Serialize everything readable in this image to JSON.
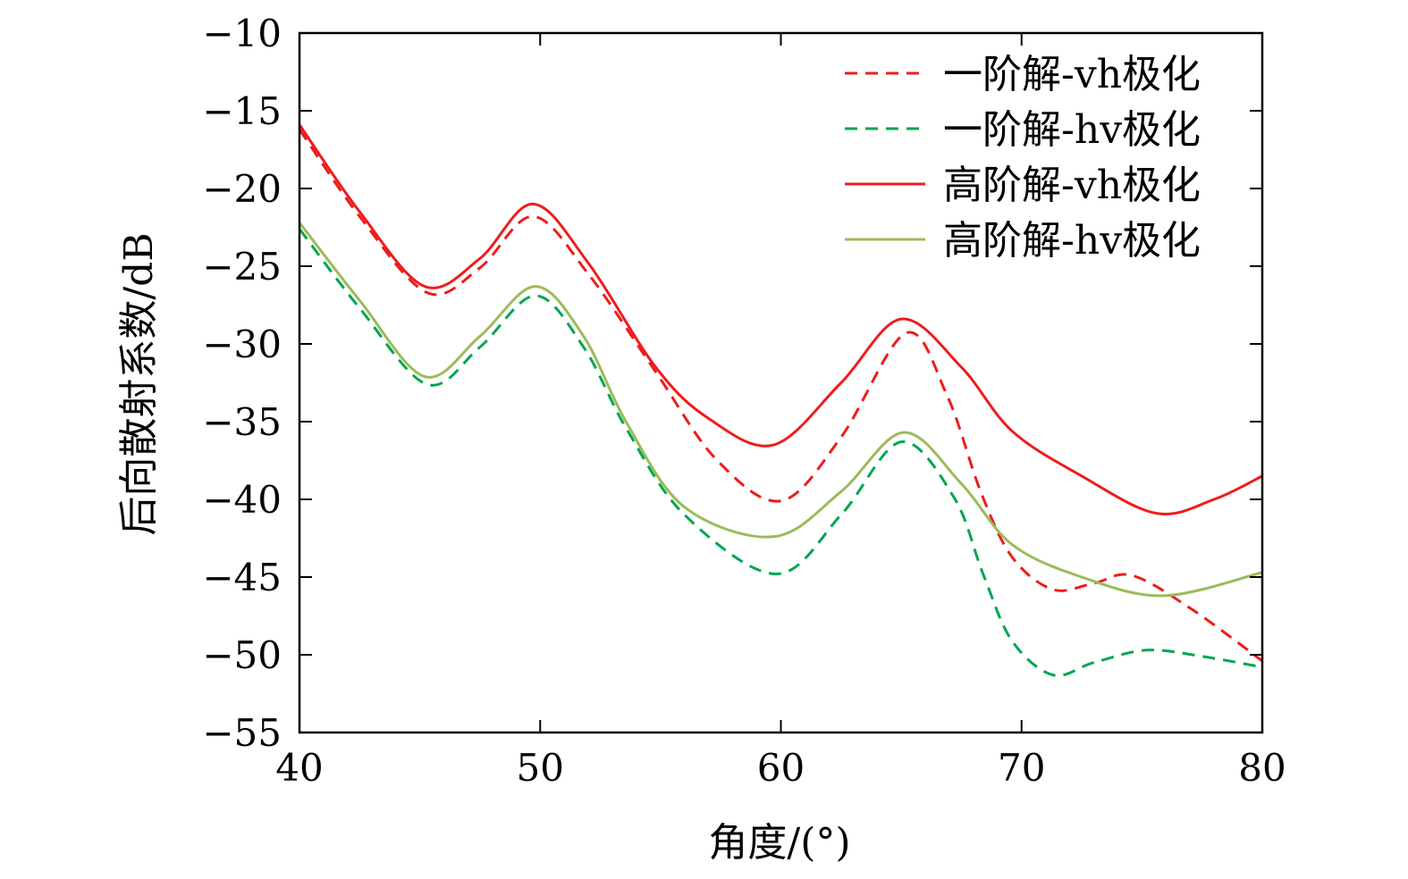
{
  "chart_data": {
    "type": "line",
    "title": "",
    "xlabel": "角度/(°)",
    "ylabel": "后向散射系数/dB",
    "xlim": [
      40,
      80
    ],
    "ylim": [
      -55,
      -10
    ],
    "xticks": [
      40,
      50,
      60,
      70,
      80
    ],
    "yticks": [
      -10,
      -15,
      -20,
      -25,
      -30,
      -35,
      -40,
      -45,
      -50,
      -55
    ],
    "xtick_labels": [
      "40",
      "50",
      "60",
      "70",
      "80"
    ],
    "ytick_labels": [
      "−10",
      "−15",
      "−20",
      "−25",
      "−30",
      "−35",
      "−40",
      "−45",
      "−50",
      "−55"
    ],
    "grid": false,
    "legend_position": "top-right",
    "series": [
      {
        "name": "一阶解-vh极化",
        "color": "#ee1c1c",
        "dash": true,
        "x": [
          40,
          42.5,
          45.3,
          47.5,
          49.7,
          52,
          54.8,
          57.3,
          60,
          62.5,
          65.2,
          66.9,
          68.3,
          69.6,
          71.3,
          73,
          74.6,
          77.1,
          80
        ],
        "y": [
          -16.2,
          -21.8,
          -26.7,
          -25.1,
          -21.8,
          -25.5,
          -31.8,
          -37.4,
          -40.1,
          -36,
          -29.3,
          -33.3,
          -39.5,
          -43.7,
          -45.8,
          -45.4,
          -44.9,
          -47.1,
          -50.4
        ]
      },
      {
        "name": "一阶解-hv极化",
        "color": "#00a651",
        "dash": true,
        "x": [
          40,
          42.5,
          45.3,
          47.5,
          49.8,
          51.8,
          53.6,
          56,
          59.8,
          62.5,
          65,
          67.2,
          68.4,
          69.6,
          71.3,
          73,
          75.2,
          77.5,
          80
        ],
        "y": [
          -22.6,
          -27.7,
          -32.6,
          -30.2,
          -26.9,
          -30.2,
          -35.5,
          -41.0,
          -44.8,
          -41,
          -36.3,
          -39.9,
          -44.8,
          -49.1,
          -51.3,
          -50.5,
          -49.7,
          -50.1,
          -50.8
        ]
      },
      {
        "name": "高阶解-vh极化",
        "color": "#ee1c1c",
        "dash": false,
        "x": [
          40,
          42.5,
          45.2,
          47.5,
          49.7,
          52,
          54.8,
          57,
          59.7,
          62.5,
          65,
          67.5,
          69.6,
          72.5,
          75.6,
          78,
          80
        ],
        "y": [
          -15.9,
          -21.5,
          -26.3,
          -24.5,
          -21.0,
          -24.8,
          -31.5,
          -34.8,
          -36.5,
          -32.5,
          -28.4,
          -31.5,
          -35.6,
          -38.5,
          -40.9,
          -40.0,
          -38.5
        ]
      },
      {
        "name": "高阶解-hv极化",
        "color": "#9bbb59",
        "dash": false,
        "x": [
          40,
          42.5,
          45.2,
          47.5,
          49.8,
          51.8,
          53.6,
          56,
          59.7,
          62.5,
          65.1,
          67.5,
          69.6,
          72.5,
          75.9,
          80
        ],
        "y": [
          -22.2,
          -27.2,
          -32.1,
          -29.5,
          -26.3,
          -29.5,
          -35.1,
          -40.5,
          -42.4,
          -39.5,
          -35.7,
          -39,
          -42.9,
          -45,
          -46.2,
          -44.7
        ]
      }
    ]
  }
}
